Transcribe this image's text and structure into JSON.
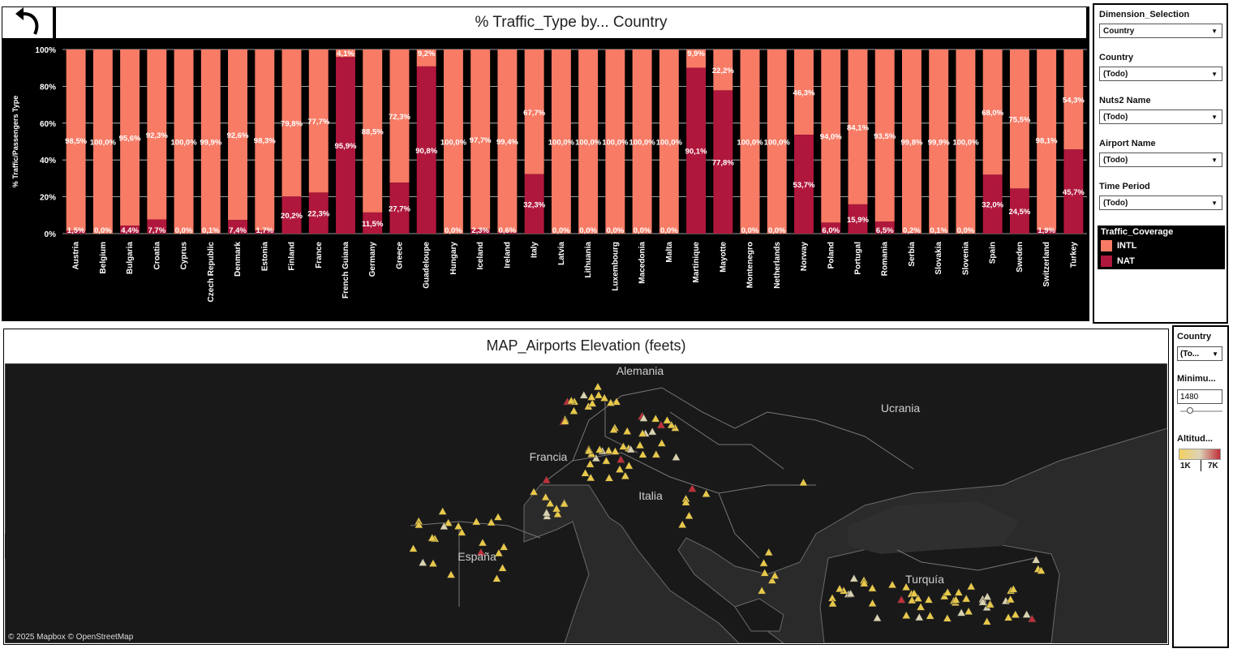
{
  "header": {
    "title": "% Traffic_Type by... Country"
  },
  "colors": {
    "intl": "#f77b65",
    "nat": "#b0173c"
  },
  "chart_data": {
    "type": "bar",
    "stacked": true,
    "ylabel": "% Traffic/Passengers Type",
    "yticks": [
      "0%",
      "20%",
      "40%",
      "60%",
      "80%",
      "100%"
    ],
    "ylim": [
      0,
      100
    ],
    "categories": [
      "Austria",
      "Belgium",
      "Bulgaria",
      "Croatia",
      "Cyprus",
      "Czech Republic",
      "Denmark",
      "Estonia",
      "Finland",
      "France",
      "French Guiana",
      "Germany",
      "Greece",
      "Guadeloupe",
      "Hungary",
      "Iceland",
      "Ireland",
      "Italy",
      "Latvia",
      "Lithuania",
      "Luxembourg",
      "Macedonia",
      "Malta",
      "Martinique",
      "Mayotte",
      "Montenegro",
      "Netherlands",
      "Norway",
      "Poland",
      "Portugal",
      "Romania",
      "Serbia",
      "Slovakia",
      "Slovenia",
      "Spain",
      "Sweden",
      "Switzerland",
      "Turkey"
    ],
    "series": [
      {
        "name": "INTL",
        "labels": [
          "98,5%",
          "100,0%",
          "95,6%",
          "92,3%",
          "100,0%",
          "99,9%",
          "92,6%",
          "98,3%",
          "79,8%",
          "77,7%",
          "4,1%",
          "88,5%",
          "72,3%",
          "9,2%",
          "100,0%",
          "97,7%",
          "99,4%",
          "67,7%",
          "100,0%",
          "100,0%",
          "100,0%",
          "100,0%",
          "100,0%",
          "9,9%",
          "22,2%",
          "100,0%",
          "100,0%",
          "46,3%",
          "94,0%",
          "84,1%",
          "93,5%",
          "99,8%",
          "99,9%",
          "100,0%",
          "68,0%",
          "75,5%",
          "98,1%",
          "54,3%"
        ]
      },
      {
        "name": "NAT",
        "values": [
          1.5,
          0.0,
          4.4,
          7.7,
          0.0,
          0.1,
          7.4,
          1.7,
          20.2,
          22.3,
          95.9,
          11.5,
          27.7,
          90.8,
          0.0,
          2.3,
          0.6,
          32.3,
          0.0,
          0.0,
          0.0,
          0.0,
          0.0,
          90.1,
          77.8,
          0.0,
          0.0,
          53.7,
          6.0,
          15.9,
          6.5,
          0.2,
          0.1,
          0.0,
          32.0,
          24.5,
          1.9,
          45.7
        ],
        "labels": [
          "1,5%",
          "0,0%",
          "4,4%",
          "7,7%",
          "0,0%",
          "0,1%",
          "7,4%",
          "1,7%",
          "20,2%",
          "22,3%",
          "95,9%",
          "11,5%",
          "27,7%",
          "90,8%",
          "0,0%",
          "2,3%",
          "0,6%",
          "32,3%",
          "0,0%",
          "0,0%",
          "0,0%",
          "0,0%",
          "0,0%",
          "90,1%",
          "77,8%",
          "0,0%",
          "0,0%",
          "53,7%",
          "6,0%",
          "15,9%",
          "6,5%",
          "0,2%",
          "0,1%",
          "0,0%",
          "32,0%",
          "24,5%",
          "1,9%",
          "45,7%"
        ]
      }
    ]
  },
  "filters": {
    "dimension": {
      "label": "Dimension_Selection",
      "value": "Country"
    },
    "country": {
      "label": "Country",
      "value": "(Todo)"
    },
    "nuts2": {
      "label": "Nuts2 Name",
      "value": "(Todo)"
    },
    "airport": {
      "label": "Airport Name",
      "value": "(Todo)"
    },
    "period": {
      "label": "Time Period",
      "value": "(Todo)"
    },
    "legend": {
      "title": "Traffic_Coverage",
      "items": [
        "INTL",
        "NAT"
      ]
    }
  },
  "map": {
    "title": "MAP_Airports Elevation (feets)",
    "labels": [
      "Alemania",
      "Ucrania",
      "Francia",
      "Italia",
      "España",
      "Turquía"
    ],
    "attribution": "© 2025 Mapbox  © OpenStreetMap",
    "colors": {
      "low": "#e8c84a",
      "mid": "#d9d2b0",
      "high": "#c0303a"
    }
  },
  "map_filters": {
    "country_label": "Country",
    "country_value": "(To...",
    "minimum_label": "Minimu...",
    "minimum_value": "1480",
    "altitude_label": "Altitud...",
    "altitude_min": "1K",
    "altitude_max": "7K"
  }
}
